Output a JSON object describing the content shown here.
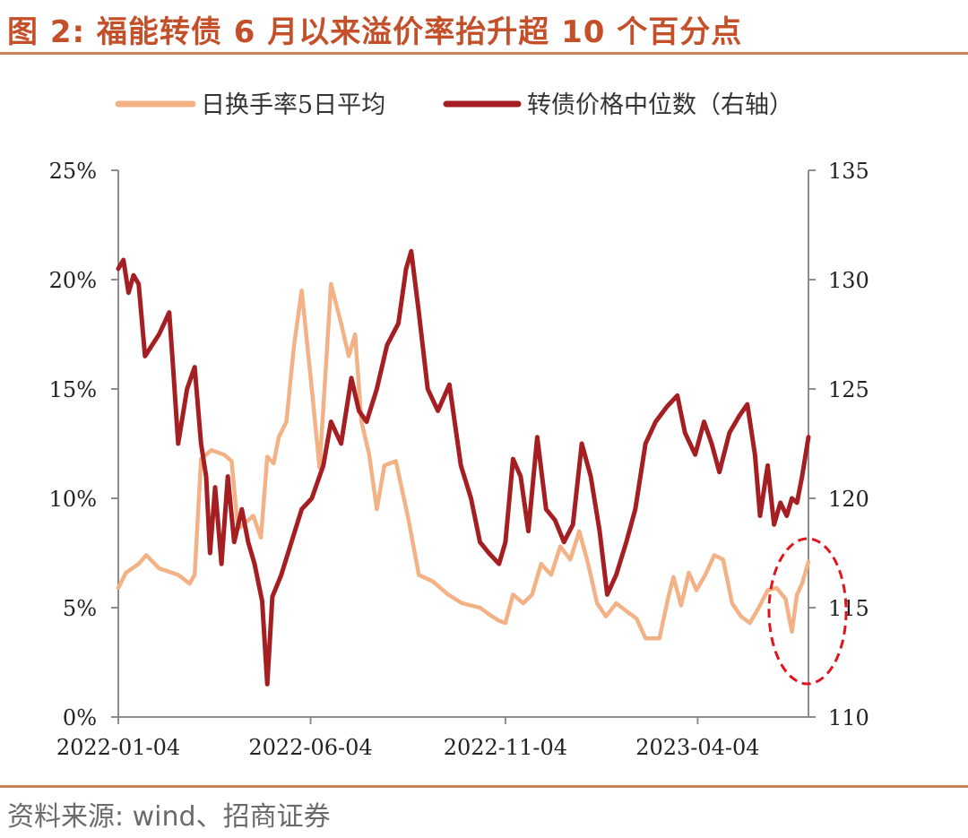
{
  "title": "图 2: 福能转债 6 月以来溢价率抬升超 10 个百分点",
  "source": "资料来源: wind、招商证券",
  "colors": {
    "turnover": "#f3b286",
    "price": "#a51e22",
    "title": "#c4502a",
    "highlight": "#e0141c"
  },
  "chart_data": {
    "type": "line",
    "x_tick_labels": [
      "2022-01-04",
      "2022-06-04",
      "2022-11-04",
      "2023-04-04"
    ],
    "x_range": [
      "2022-01-04",
      "2023-06-30"
    ],
    "y_left": {
      "ticks": [
        "0%",
        "5%",
        "10%",
        "15%",
        "20%",
        "25%"
      ],
      "range": [
        0,
        25
      ]
    },
    "y_right": {
      "ticks": [
        "110",
        "115",
        "120",
        "125",
        "130",
        "135"
      ],
      "range": [
        110,
        135
      ]
    },
    "legend_position": "top",
    "grid": false,
    "series": [
      {
        "name": "日换手率5日平均",
        "axis": "left",
        "color": "#f3b286",
        "points": [
          [
            "2022-01-04",
            5.9
          ],
          [
            "2022-01-10",
            6.6
          ],
          [
            "2022-01-20",
            7.0
          ],
          [
            "2022-01-26",
            7.4
          ],
          [
            "2022-02-05",
            6.8
          ],
          [
            "2022-02-20",
            6.5
          ],
          [
            "2022-03-01",
            6.1
          ],
          [
            "2022-03-05",
            6.5
          ],
          [
            "2022-03-10",
            11.8
          ],
          [
            "2022-03-18",
            12.2
          ],
          [
            "2022-03-28",
            12.0
          ],
          [
            "2022-04-03",
            11.7
          ],
          [
            "2022-04-08",
            8.6
          ],
          [
            "2022-04-20",
            9.2
          ],
          [
            "2022-04-26",
            8.2
          ],
          [
            "2022-05-01",
            11.9
          ],
          [
            "2022-05-06",
            11.6
          ],
          [
            "2022-05-10",
            12.8
          ],
          [
            "2022-05-16",
            13.5
          ],
          [
            "2022-05-22",
            17.0
          ],
          [
            "2022-05-28",
            19.5
          ],
          [
            "2022-06-05",
            15.0
          ],
          [
            "2022-06-11",
            11.4
          ],
          [
            "2022-06-16",
            16.0
          ],
          [
            "2022-06-20",
            19.8
          ],
          [
            "2022-06-28",
            18.0
          ],
          [
            "2022-07-04",
            16.5
          ],
          [
            "2022-07-09",
            17.5
          ],
          [
            "2022-07-14",
            13.5
          ],
          [
            "2022-07-20",
            12.0
          ],
          [
            "2022-07-26",
            9.5
          ],
          [
            "2022-08-01",
            11.5
          ],
          [
            "2022-08-10",
            11.7
          ],
          [
            "2022-08-20",
            9.0
          ],
          [
            "2022-08-28",
            6.5
          ],
          [
            "2022-09-08",
            6.2
          ],
          [
            "2022-09-20",
            5.6
          ],
          [
            "2022-10-01",
            5.2
          ],
          [
            "2022-10-15",
            5.0
          ],
          [
            "2022-10-22",
            4.7
          ],
          [
            "2022-10-30",
            4.4
          ],
          [
            "2022-11-04",
            4.3
          ],
          [
            "2022-11-10",
            5.6
          ],
          [
            "2022-11-18",
            5.2
          ],
          [
            "2022-11-25",
            5.6
          ],
          [
            "2022-12-02",
            7.0
          ],
          [
            "2022-12-10",
            6.5
          ],
          [
            "2022-12-17",
            7.8
          ],
          [
            "2022-12-25",
            7.2
          ],
          [
            "2023-01-01",
            8.5
          ],
          [
            "2023-01-08",
            7.0
          ],
          [
            "2023-01-15",
            5.2
          ],
          [
            "2023-01-22",
            4.6
          ],
          [
            "2023-01-30",
            5.2
          ],
          [
            "2023-02-08",
            4.8
          ],
          [
            "2023-02-15",
            4.5
          ],
          [
            "2023-02-22",
            3.6
          ],
          [
            "2023-03-05",
            3.6
          ],
          [
            "2023-03-12",
            5.5
          ],
          [
            "2023-03-16",
            6.4
          ],
          [
            "2023-03-22",
            5.1
          ],
          [
            "2023-03-28",
            6.6
          ],
          [
            "2023-04-03",
            5.8
          ],
          [
            "2023-04-10",
            6.5
          ],
          [
            "2023-04-17",
            7.4
          ],
          [
            "2023-04-24",
            7.2
          ],
          [
            "2023-05-01",
            5.2
          ],
          [
            "2023-05-08",
            4.6
          ],
          [
            "2023-05-15",
            4.3
          ],
          [
            "2023-05-22",
            5.0
          ],
          [
            "2023-05-29",
            5.8
          ],
          [
            "2023-06-05",
            5.9
          ],
          [
            "2023-06-12",
            5.4
          ],
          [
            "2023-06-17",
            3.9
          ],
          [
            "2023-06-21",
            5.6
          ],
          [
            "2023-06-25",
            6.1
          ],
          [
            "2023-06-30",
            7.1
          ]
        ]
      },
      {
        "name": "转债价格中位数（右轴）",
        "axis": "right",
        "color": "#a51e22",
        "points": [
          [
            "2022-01-04",
            130.5
          ],
          [
            "2022-01-08",
            130.9
          ],
          [
            "2022-01-12",
            129.4
          ],
          [
            "2022-01-16",
            130.2
          ],
          [
            "2022-01-20",
            129.8
          ],
          [
            "2022-01-25",
            126.5
          ],
          [
            "2022-02-05",
            127.5
          ],
          [
            "2022-02-13",
            128.5
          ],
          [
            "2022-02-16",
            126.0
          ],
          [
            "2022-02-20",
            122.5
          ],
          [
            "2022-02-27",
            125.0
          ],
          [
            "2022-03-05",
            126.0
          ],
          [
            "2022-03-10",
            122.5
          ],
          [
            "2022-03-14",
            121.0
          ],
          [
            "2022-03-17",
            117.5
          ],
          [
            "2022-03-21",
            120.5
          ],
          [
            "2022-03-26",
            117.0
          ],
          [
            "2022-03-31",
            121.0
          ],
          [
            "2022-04-05",
            118.0
          ],
          [
            "2022-04-11",
            119.5
          ],
          [
            "2022-04-16",
            118.0
          ],
          [
            "2022-04-21",
            117.0
          ],
          [
            "2022-04-27",
            115.3
          ],
          [
            "2022-05-01",
            111.5
          ],
          [
            "2022-05-05",
            115.5
          ],
          [
            "2022-05-12",
            116.5
          ],
          [
            "2022-05-20",
            118.0
          ],
          [
            "2022-05-28",
            119.5
          ],
          [
            "2022-06-05",
            120.0
          ],
          [
            "2022-06-14",
            121.5
          ],
          [
            "2022-06-20",
            123.5
          ],
          [
            "2022-06-28",
            122.5
          ],
          [
            "2022-07-06",
            125.5
          ],
          [
            "2022-07-12",
            124.0
          ],
          [
            "2022-07-18",
            123.5
          ],
          [
            "2022-07-26",
            125.0
          ],
          [
            "2022-08-03",
            127.0
          ],
          [
            "2022-08-12",
            128.0
          ],
          [
            "2022-08-18",
            130.5
          ],
          [
            "2022-08-22",
            131.3
          ],
          [
            "2022-08-28",
            128.5
          ],
          [
            "2022-09-04",
            125.0
          ],
          [
            "2022-09-12",
            124.0
          ],
          [
            "2022-09-21",
            125.2
          ],
          [
            "2022-09-30",
            121.5
          ],
          [
            "2022-10-08",
            120.0
          ],
          [
            "2022-10-15",
            118.0
          ],
          [
            "2022-10-22",
            117.5
          ],
          [
            "2022-10-30",
            117.0
          ],
          [
            "2022-11-04",
            118.0
          ],
          [
            "2022-11-10",
            121.8
          ],
          [
            "2022-11-16",
            121.0
          ],
          [
            "2022-11-22",
            118.5
          ],
          [
            "2022-11-29",
            122.8
          ],
          [
            "2022-12-06",
            119.5
          ],
          [
            "2022-12-13",
            119.0
          ],
          [
            "2022-12-20",
            118.0
          ],
          [
            "2022-12-27",
            118.8
          ],
          [
            "2023-01-03",
            122.5
          ],
          [
            "2023-01-10",
            121.0
          ],
          [
            "2023-01-17",
            118.5
          ],
          [
            "2023-01-23",
            115.6
          ],
          [
            "2023-01-30",
            116.5
          ],
          [
            "2023-02-07",
            118.0
          ],
          [
            "2023-02-14",
            119.5
          ],
          [
            "2023-02-22",
            122.5
          ],
          [
            "2023-03-02",
            123.5
          ],
          [
            "2023-03-11",
            124.2
          ],
          [
            "2023-03-19",
            124.7
          ],
          [
            "2023-03-25",
            123.0
          ],
          [
            "2023-04-02",
            122.0
          ],
          [
            "2023-04-09",
            123.5
          ],
          [
            "2023-04-15",
            122.5
          ],
          [
            "2023-04-21",
            121.2
          ],
          [
            "2023-04-29",
            123.0
          ],
          [
            "2023-05-07",
            123.8
          ],
          [
            "2023-05-13",
            124.3
          ],
          [
            "2023-05-19",
            122.0
          ],
          [
            "2023-05-23",
            119.2
          ],
          [
            "2023-05-29",
            121.5
          ],
          [
            "2023-06-03",
            118.8
          ],
          [
            "2023-06-08",
            119.8
          ],
          [
            "2023-06-13",
            119.2
          ],
          [
            "2023-06-17",
            120.0
          ],
          [
            "2023-06-21",
            119.8
          ],
          [
            "2023-06-25",
            121.0
          ],
          [
            "2023-06-30",
            122.8
          ]
        ]
      }
    ]
  }
}
